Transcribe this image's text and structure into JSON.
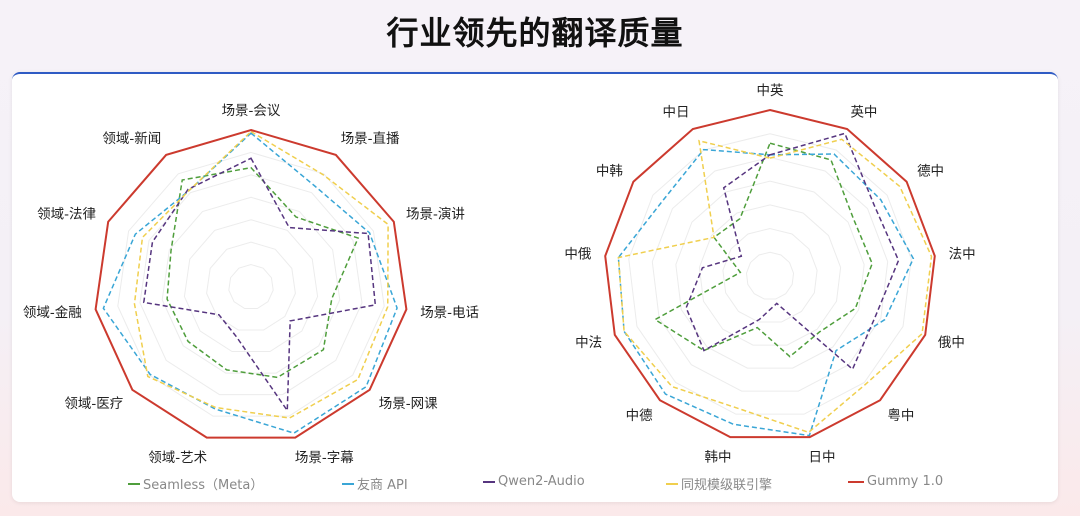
{
  "title": "行业领先的翻译质量",
  "colors": {
    "Seamless（Meta）": "#4f9e3c",
    "友商 API": "#3aa6d6",
    "Qwen2-Audio": "#56357f",
    "同规模级联引擎": "#f0cf4e",
    "Gummy 1.0": "#cc3a2e"
  },
  "legend": [
    {
      "name": "Seamless（Meta）",
      "style": "dashed"
    },
    {
      "name": "友商 API",
      "style": "dashed"
    },
    {
      "name": "Qwen2-Audio",
      "style": "dashed"
    },
    {
      "name": "同规模级联引擎",
      "style": "dashed"
    },
    {
      "name": "Gummy 1.0",
      "style": "solid"
    }
  ],
  "chart_data": [
    {
      "type": "radar",
      "grid": true,
      "legend_position": "bottom",
      "range": [
        0,
        1
      ],
      "categories": [
        "场景-会议",
        "场景-直播",
        "场景-演讲",
        "场景-电话",
        "场景-网课",
        "场景-字幕",
        "领域-艺术",
        "领域-医疗",
        "领域-金融",
        "领域-法律",
        "领域-新闻"
      ],
      "series": [
        {
          "name": "Seamless（Meta）",
          "values": [
            0.76,
            0.53,
            0.75,
            0.52,
            0.61,
            0.6,
            0.55,
            0.53,
            0.54,
            0.56,
            0.81
          ]
        },
        {
          "name": "友商 API",
          "values": [
            0.98,
            0.76,
            0.83,
            0.94,
            0.97,
            0.97,
            0.81,
            0.85,
            0.95,
            0.81,
            0.73
          ]
        },
        {
          "name": "Qwen2-Audio",
          "values": [
            0.82,
            0.45,
            0.82,
            0.8,
            0.33,
            0.82,
            0.33,
            0.27,
            0.69,
            0.69,
            0.74
          ]
        },
        {
          "name": "同规模级联引擎",
          "values": [
            0.99,
            0.85,
            0.96,
            0.88,
            0.9,
            0.87,
            0.8,
            0.87,
            0.75,
            0.76,
            0.73
          ]
        },
        {
          "name": "Gummy 1.0",
          "values": [
            1,
            1,
            1,
            1,
            1,
            1,
            1,
            1,
            1,
            1,
            1
          ]
        }
      ]
    },
    {
      "type": "radar",
      "grid": true,
      "legend_position": "bottom",
      "range": [
        0,
        1
      ],
      "categories": [
        "中英",
        "英中",
        "德中",
        "法中",
        "俄中",
        "粤中",
        "日中",
        "韩中",
        "中德",
        "中法",
        "中俄",
        "中韩",
        "中日"
      ],
      "series": [
        {
          "name": "Seamless（Meta）",
          "values": [
            0.8,
            0.79,
            0.61,
            0.62,
            0.55,
            0.45,
            0.5,
            0.32,
            0.6,
            0.74,
            0.18,
            0.41,
            0.39
          ]
        },
        {
          "name": "友商 API",
          "values": [
            0.73,
            0.83,
            0.81,
            0.87,
            0.74,
            0.6,
            0.99,
            0.92,
            0.95,
            0.94,
            0.92,
            0.79,
            0.86
          ]
        },
        {
          "name": "Qwen2-Audio",
          "values": [
            0.73,
            0.97,
            0.76,
            0.78,
            0.68,
            0.75,
            0.17,
            0.27,
            0.6,
            0.54,
            0.41,
            0.21,
            0.6
          ]
        },
        {
          "name": "同规模级联引擎",
          "values": [
            0.71,
            0.93,
            0.95,
            0.98,
            0.98,
            0.87,
            0.97,
            0.82,
            0.89,
            0.94,
            0.92,
            0.41,
            0.92
          ]
        },
        {
          "name": "Gummy 1.0",
          "values": [
            1,
            1,
            1,
            1,
            1,
            1,
            1,
            1,
            1,
            1,
            1,
            1,
            1
          ]
        }
      ]
    }
  ]
}
